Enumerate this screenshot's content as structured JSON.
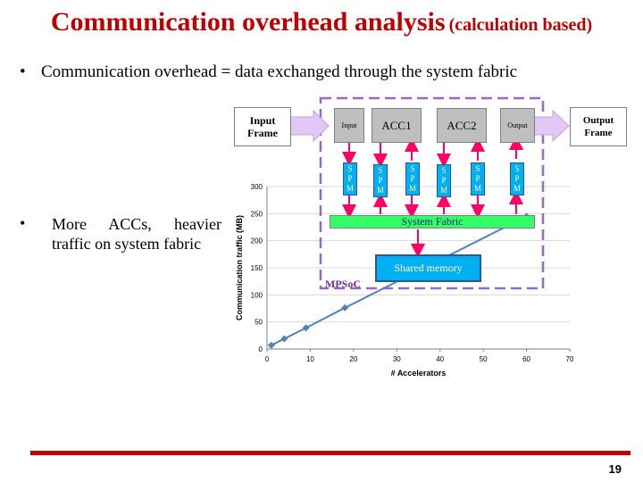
{
  "slide": {
    "title_main": "Communication overhead analysis",
    "title_sub": "(calculation based)",
    "bullet1": "Communication overhead = data exchanged through the system fabric",
    "bullet2": "More ACCs, heavier traffic on system fabric",
    "bullet_char": "•",
    "page_number": "19",
    "accent_color": "#c00000"
  },
  "diagram": {
    "input_frame": "Input Frame",
    "output_frame": "Output Frame",
    "input_label": "Input",
    "acc1": "ACC1",
    "acc2": "ACC2",
    "output_label": "Output",
    "spm_label": "S P M",
    "system_fabric": "System Fabric",
    "shared_memory": "Shared memory",
    "mpsoc": "MPSoC"
  },
  "chart_data": {
    "type": "scatter",
    "title": "",
    "xlabel": "# Accelerators",
    "ylabel": "Communication traffic (MB)",
    "xlim": [
      0,
      70
    ],
    "ylim": [
      0,
      300
    ],
    "xticks": [
      0,
      10,
      20,
      30,
      40,
      50,
      60,
      70
    ],
    "yticks": [
      0,
      50,
      100,
      150,
      200,
      250,
      300
    ],
    "grid": true,
    "series": [
      {
        "x": [
          1,
          4,
          9,
          18,
          60
        ],
        "y": [
          7,
          19,
          39,
          76,
          245
        ],
        "color": "#4f81bd"
      }
    ]
  }
}
